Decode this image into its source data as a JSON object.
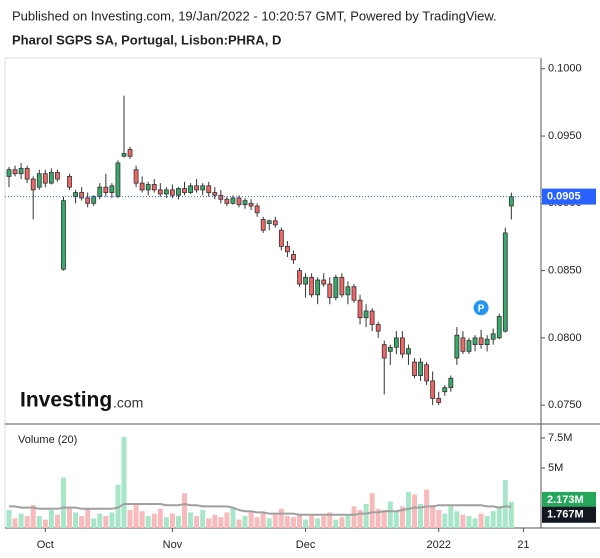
{
  "header": {
    "published": "Published on Investing.com, 19/Jan/2022 - 10:20:57 GMT, Powered by TradingView."
  },
  "logo": {
    "brand": "Investing",
    "suffix": ".com"
  },
  "chart_data": [
    {
      "type": "candlestick",
      "title": "Pharol SGPS SA, Portugal, Lisbon:PHRA, D",
      "open": [
        0.092,
        0.0925,
        0.0922,
        0.0926,
        0.0918,
        0.0912,
        0.0922,
        0.0915,
        0.0923,
        0.0851,
        0.092,
        0.0905,
        0.0908,
        0.0904,
        0.09,
        0.0905,
        0.0912,
        0.0908,
        0.0905,
        0.0935,
        0.094,
        0.0925,
        0.0915,
        0.091,
        0.0914,
        0.091,
        0.0907,
        0.091,
        0.0906,
        0.0911,
        0.0908,
        0.0913,
        0.091,
        0.0913,
        0.0908,
        0.0906,
        0.0903,
        0.09,
        0.0904,
        0.0899,
        0.09,
        0.0898,
        0.0888,
        0.0885,
        0.0887,
        0.088,
        0.0868,
        0.0862,
        0.085,
        0.084,
        0.0845,
        0.0832,
        0.0843,
        0.084,
        0.083,
        0.0845,
        0.0832,
        0.0838,
        0.0828,
        0.0815,
        0.082,
        0.081,
        0.0795,
        0.079,
        0.0793,
        0.08,
        0.0788,
        0.0782,
        0.0772,
        0.078,
        0.0768,
        0.0755,
        0.076,
        0.0763,
        0.0785,
        0.08,
        0.079,
        0.0795,
        0.08,
        0.0795,
        0.0799,
        0.08,
        0.0805,
        0.0898
      ],
      "high": [
        0.0927,
        0.0928,
        0.093,
        0.0928,
        0.092,
        0.0925,
        0.0925,
        0.0926,
        0.0925,
        0.0905,
        0.0922,
        0.091,
        0.0912,
        0.0908,
        0.0906,
        0.0915,
        0.0922,
        0.0915,
        0.0932,
        0.098,
        0.0942,
        0.0928,
        0.092,
        0.0916,
        0.0918,
        0.0915,
        0.0912,
        0.0914,
        0.0912,
        0.0916,
        0.0915,
        0.0918,
        0.0915,
        0.0916,
        0.0912,
        0.091,
        0.0905,
        0.0906,
        0.0906,
        0.0904,
        0.0903,
        0.09,
        0.089,
        0.0888,
        0.089,
        0.0882,
        0.0872,
        0.0865,
        0.0852,
        0.0848,
        0.0848,
        0.0845,
        0.0848,
        0.0845,
        0.0847,
        0.0848,
        0.0842,
        0.084,
        0.0832,
        0.0825,
        0.0822,
        0.0812,
        0.0798,
        0.0795,
        0.0805,
        0.0805,
        0.0795,
        0.0785,
        0.0785,
        0.0782,
        0.0775,
        0.076,
        0.0765,
        0.0772,
        0.0808,
        0.0805,
        0.08,
        0.0802,
        0.0806,
        0.0802,
        0.0807,
        0.0818,
        0.0882,
        0.0908
      ],
      "low": [
        0.0912,
        0.092,
        0.0918,
        0.0915,
        0.0888,
        0.091,
        0.0912,
        0.0914,
        0.0916,
        0.085,
        0.091,
        0.09,
        0.0902,
        0.0897,
        0.0898,
        0.0903,
        0.0905,
        0.0904,
        0.0904,
        0.0934,
        0.0933,
        0.0912,
        0.0908,
        0.0906,
        0.0908,
        0.0905,
        0.0904,
        0.0904,
        0.0903,
        0.0906,
        0.0907,
        0.0908,
        0.0906,
        0.0905,
        0.0903,
        0.09,
        0.0898,
        0.0899,
        0.0897,
        0.0896,
        0.0895,
        0.089,
        0.0878,
        0.088,
        0.0882,
        0.0865,
        0.086,
        0.0855,
        0.0838,
        0.083,
        0.083,
        0.0825,
        0.0838,
        0.0825,
        0.0828,
        0.083,
        0.0825,
        0.0826,
        0.081,
        0.0808,
        0.0805,
        0.08,
        0.0758,
        0.078,
        0.0788,
        0.0785,
        0.078,
        0.077,
        0.0768,
        0.0765,
        0.075,
        0.075,
        0.0757,
        0.076,
        0.078,
        0.0788,
        0.0788,
        0.079,
        0.0792,
        0.079,
        0.0795,
        0.0799,
        0.0804,
        0.0888
      ],
      "close": [
        0.0925,
        0.0922,
        0.0926,
        0.0918,
        0.091,
        0.0922,
        0.0915,
        0.0923,
        0.0918,
        0.0902,
        0.0912,
        0.0908,
        0.0904,
        0.09,
        0.0905,
        0.0912,
        0.0908,
        0.0913,
        0.093,
        0.0937,
        0.0935,
        0.0915,
        0.091,
        0.0914,
        0.091,
        0.0907,
        0.091,
        0.0906,
        0.0911,
        0.0908,
        0.0913,
        0.091,
        0.0913,
        0.0908,
        0.0906,
        0.0903,
        0.09,
        0.0904,
        0.0899,
        0.0902,
        0.0898,
        0.0893,
        0.088,
        0.0887,
        0.0884,
        0.0868,
        0.0864,
        0.0858,
        0.084,
        0.0845,
        0.0832,
        0.0843,
        0.084,
        0.083,
        0.0845,
        0.0832,
        0.0838,
        0.0828,
        0.0815,
        0.082,
        0.081,
        0.0805,
        0.0785,
        0.0793,
        0.08,
        0.0788,
        0.0792,
        0.0772,
        0.0782,
        0.0768,
        0.0755,
        0.0752,
        0.0763,
        0.077,
        0.0802,
        0.079,
        0.0798,
        0.08,
        0.0795,
        0.0799,
        0.0803,
        0.0816,
        0.0878,
        0.0905
      ],
      "up_color": "#37a96b",
      "down_color": "#ee6666",
      "xlim": [
        -0.66,
        87.9
      ],
      "ylim": [
        0.0736,
        0.1008
      ],
      "yticks": [
        {
          "value": 0.075,
          "label": "0.0750"
        },
        {
          "value": 0.08,
          "label": "0.0800"
        },
        {
          "value": 0.085,
          "label": "0.0850"
        },
        {
          "value": 0.09,
          "label": "0.0900"
        },
        {
          "value": 0.095,
          "label": "0.0950"
        },
        {
          "value": 0.1,
          "label": "0.1000"
        }
      ],
      "last_price": {
        "value": 0.0905,
        "label": "0.0905",
        "color": "#2962ff"
      },
      "event_marker": {
        "label": "P",
        "index": 78,
        "color": "#2196f3"
      }
    },
    {
      "type": "volume",
      "title": "Volume (20)",
      "values": [
        1.5,
        0.8,
        1.2,
        1.0,
        1.9,
        1.0,
        0.7,
        1.5,
        1.1,
        4.2,
        1.7,
        1.3,
        1.0,
        1.6,
        0.8,
        1.2,
        1.0,
        1.3,
        3.6,
        7.6,
        1.5,
        1.9,
        1.4,
        1.0,
        1.2,
        1.6,
        0.9,
        1.2,
        1.0,
        2.9,
        1.3,
        1.0,
        1.5,
        0.8,
        1.1,
        0.9,
        1.3,
        1.7,
        0.7,
        1.0,
        1.4,
        0.9,
        1.3,
        0.8,
        1.2,
        1.6,
        1.0,
        0.9,
        1.2,
        0.7,
        1.1,
        0.8,
        1.0,
        1.3,
        0.7,
        0.9,
        1.1,
        1.8,
        1.5,
        2.0,
        2.9,
        1.6,
        1.5,
        2.2,
        1.4,
        1.8,
        3.0,
        2.8,
        2.0,
        3.2,
        1.9,
        1.5,
        1.2,
        1.8,
        1.4,
        1.1,
        1.0,
        0.8,
        1.2,
        1.0,
        1.4,
        1.7,
        4.0,
        2.173
      ],
      "moving_average": [
        1.8,
        1.8,
        1.7,
        1.7,
        1.7,
        1.6,
        1.6,
        1.6,
        1.6,
        1.7,
        1.7,
        1.7,
        1.6,
        1.6,
        1.6,
        1.6,
        1.6,
        1.6,
        1.7,
        2.0,
        2.0,
        2.0,
        2.0,
        2.0,
        2.0,
        2.0,
        1.9,
        1.9,
        1.9,
        2.0,
        1.9,
        1.9,
        1.8,
        1.8,
        1.8,
        1.8,
        1.8,
        1.7,
        1.5,
        1.4,
        1.4,
        1.3,
        1.3,
        1.2,
        1.2,
        1.2,
        1.2,
        1.2,
        1.1,
        1.1,
        1.1,
        1.1,
        1.1,
        1.1,
        1.1,
        1.1,
        1.1,
        1.1,
        1.2,
        1.2,
        1.3,
        1.3,
        1.4,
        1.4,
        1.4,
        1.5,
        1.6,
        1.7,
        1.7,
        1.8,
        1.8,
        1.9,
        1.9,
        1.9,
        1.9,
        1.9,
        1.9,
        1.9,
        1.9,
        1.8,
        1.8,
        1.7,
        1.8,
        1.767
      ],
      "up_color": "#a8e6c9",
      "down_color": "#f8baba",
      "ma_color": "#a0a0a0",
      "xlim": [
        -0.66,
        87.9
      ],
      "ylim": [
        0,
        8.33
      ],
      "yticks": [
        {
          "value": 5,
          "label": "5M"
        },
        {
          "value": 7.5,
          "label": "7.5M"
        }
      ],
      "xticks": [
        {
          "value": 6,
          "label": "Oct"
        },
        {
          "value": 27,
          "label": "Nov"
        },
        {
          "value": 49,
          "label": "Dec"
        },
        {
          "value": 71,
          "label": "2022"
        },
        {
          "value": 85,
          "label": "21"
        }
      ],
      "last_volume": {
        "value": 2.173,
        "label": "2.173M",
        "color": "#26a65b"
      },
      "last_ma": {
        "value": 1.767,
        "label": "1.767M",
        "color": "#131722"
      }
    }
  ]
}
